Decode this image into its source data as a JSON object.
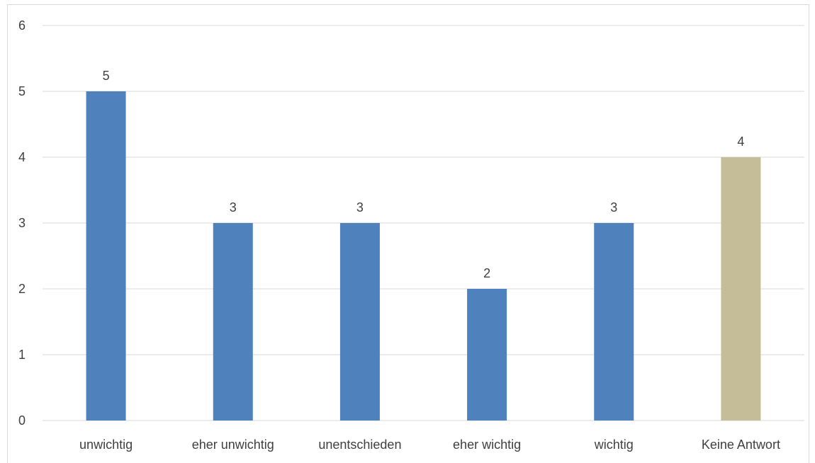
{
  "chart_data": {
    "type": "bar",
    "categories": [
      "unwichtig",
      "eher unwichtig",
      "unentschieden",
      "eher wichtig",
      "wichtig",
      "Keine Antwort"
    ],
    "values": [
      5,
      3,
      3,
      2,
      3,
      4
    ],
    "ylim": [
      0,
      6
    ],
    "yticks": [
      0,
      1,
      2,
      3,
      4,
      5,
      6
    ],
    "grid": true,
    "data_labels": true,
    "colors": [
      "#4f81bd",
      "#4f81bd",
      "#4f81bd",
      "#4f81bd",
      "#4f81bd",
      "#c4bd97"
    ]
  }
}
